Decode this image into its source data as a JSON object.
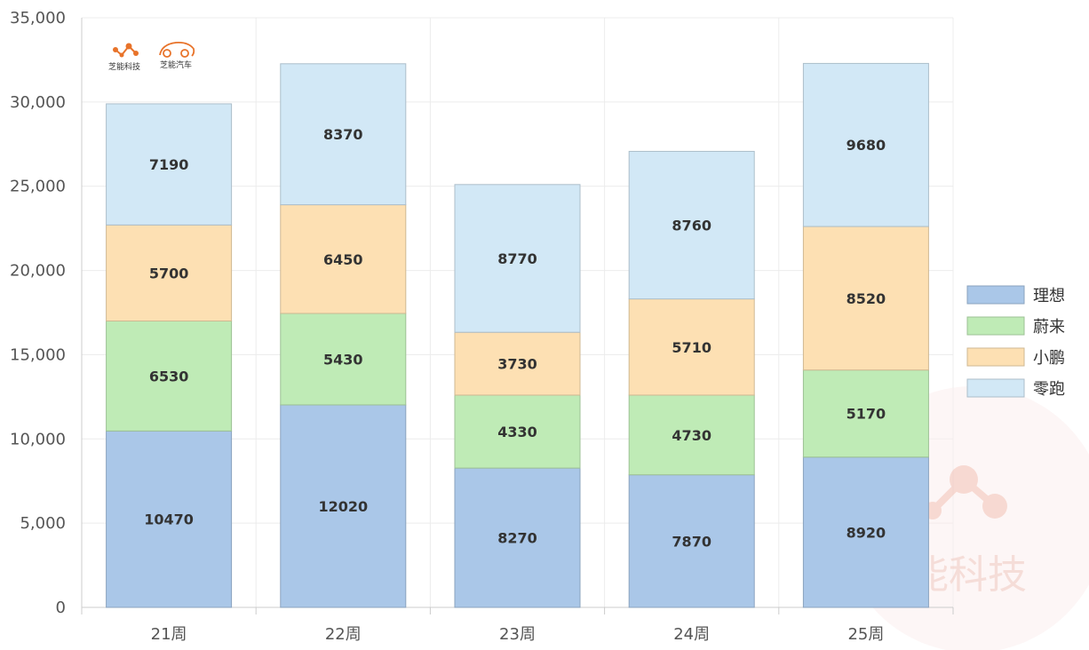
{
  "chart_data": {
    "type": "bar",
    "stacked": true,
    "title": "",
    "xlabel": "",
    "ylabel": "",
    "categories": [
      "21周",
      "22周",
      "23周",
      "24周",
      "25周"
    ],
    "series": [
      {
        "name": "理想",
        "values": [
          10470,
          12020,
          8270,
          7870,
          8920
        ],
        "color": "#aac7e8"
      },
      {
        "name": "蔚来",
        "values": [
          6530,
          5430,
          4330,
          4730,
          5170
        ],
        "color": "#bfebb6"
      },
      {
        "name": "小鹏",
        "values": [
          5700,
          6450,
          3730,
          5710,
          8520
        ],
        "color": "#fde0b3"
      },
      {
        "name": "零跑",
        "values": [
          7190,
          8370,
          8770,
          8760,
          9680
        ],
        "color": "#d2e8f6"
      }
    ],
    "ylim": [
      0,
      35000
    ],
    "yticks": [
      "0",
      "5,000",
      "10,000",
      "15,000",
      "20,000",
      "25,000",
      "30,000",
      "35,000"
    ],
    "ytick_values": [
      0,
      5000,
      10000,
      15000,
      20000,
      25000,
      30000,
      35000
    ],
    "grid": true,
    "legend_position": "right"
  },
  "logos": [
    {
      "text": "芝能科技",
      "icon": "molecule-logo-icon",
      "color": "#e8732a"
    },
    {
      "text": "芝能汽车",
      "icon": "car-logo-icon",
      "color": "#e8732a"
    }
  ],
  "watermark": {
    "text": "芝能科技",
    "icon": "molecule-watermark-icon"
  }
}
